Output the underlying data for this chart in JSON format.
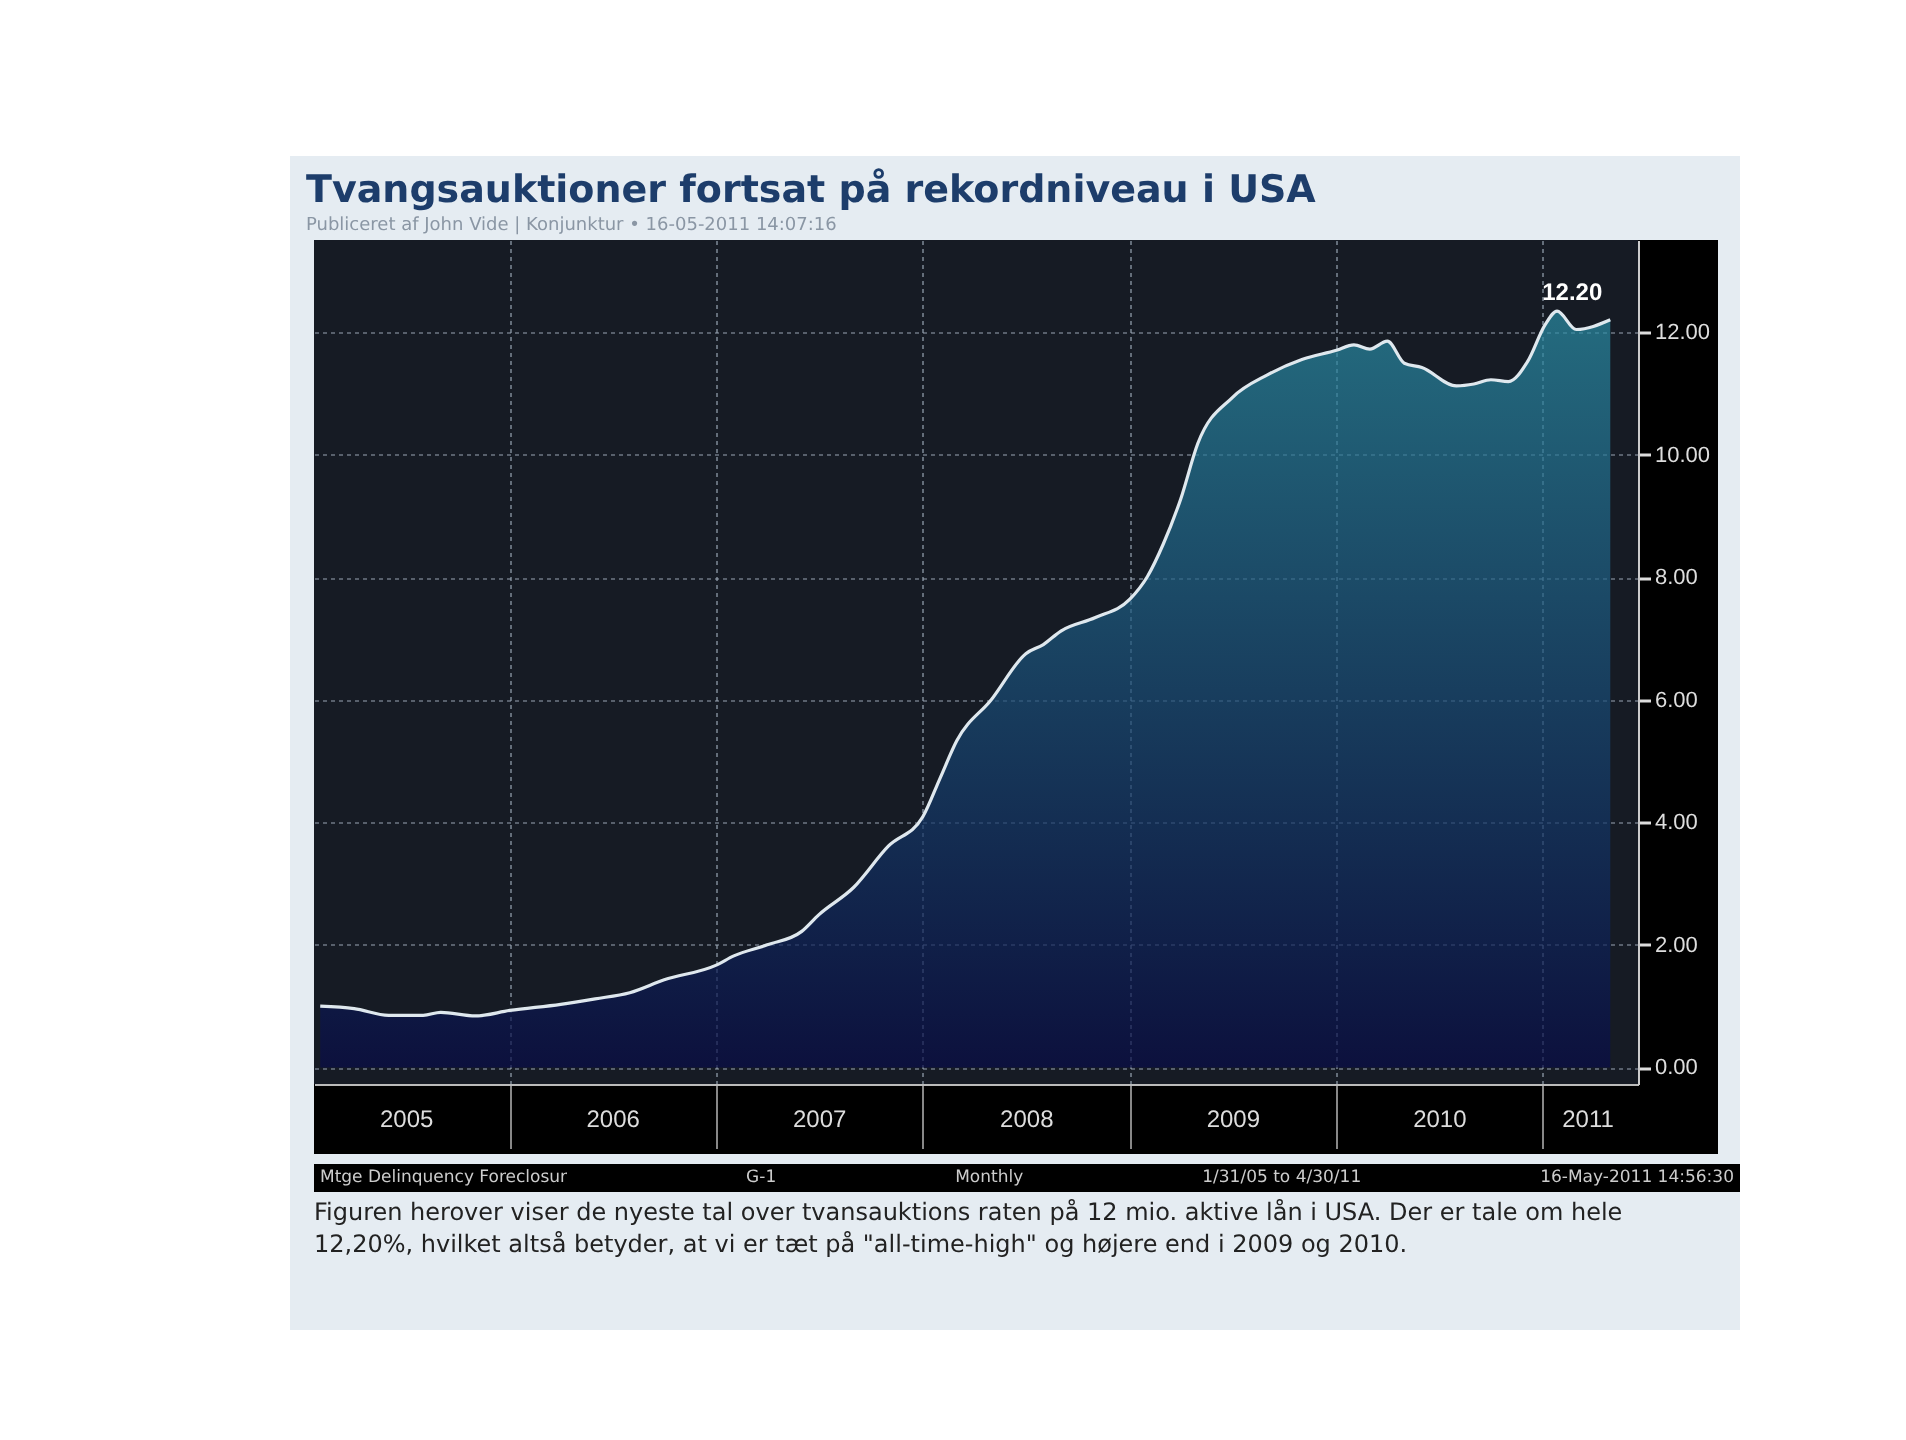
{
  "chart_data": {
    "type": "area",
    "title": "Tvangsauktioner fortsat på rekordniveau i USA",
    "subtitle": "Publiceret af John Vide | Konjunktur • 16-05-2011 14:07:16",
    "x": [
      "2005-01-31",
      "2005-04-01",
      "2005-06-01",
      "2005-08-01",
      "2005-09-01",
      "2005-11-01",
      "2006-01-01",
      "2006-04-01",
      "2006-06-01",
      "2006-08-01",
      "2006-10-01",
      "2007-01-01",
      "2007-02-01",
      "2007-04-01",
      "2007-06-01",
      "2007-07-01",
      "2007-09-01",
      "2007-11-01",
      "2008-01-01",
      "2008-02-01",
      "2008-03-01",
      "2008-05-01",
      "2008-07-01",
      "2008-08-01",
      "2008-09-01",
      "2008-11-01",
      "2009-01-01",
      "2009-02-01",
      "2009-03-01",
      "2009-04-01",
      "2009-05-01",
      "2009-07-01",
      "2009-09-01",
      "2009-11-01",
      "2010-01-01",
      "2010-02-01",
      "2010-03-01",
      "2010-04-01",
      "2010-05-01",
      "2010-06-01",
      "2010-08-01",
      "2010-09-01",
      "2010-10-01",
      "2010-11-01",
      "2010-12-05",
      "2011-01-05",
      "2011-01-26",
      "2011-03-01",
      "2011-04-30"
    ],
    "series": [
      {
        "color": "#2a8ea6",
        "values": [
          1.0,
          0.96,
          0.85,
          0.85,
          0.9,
          0.84,
          0.93,
          1.03,
          1.12,
          1.22,
          1.43,
          1.67,
          1.82,
          2.0,
          2.22,
          2.49,
          2.94,
          3.61,
          4.09,
          4.73,
          5.33,
          6.0,
          6.75,
          6.9,
          7.12,
          7.34,
          7.64,
          8.01,
          8.54,
          9.28,
          10.18,
          10.93,
          11.3,
          11.55,
          11.7,
          11.79,
          11.72,
          11.85,
          11.49,
          11.42,
          11.12,
          11.15,
          11.22,
          11.19,
          11.52,
          12.12,
          12.34,
          12.04,
          12.2
        ],
        "value_labels": [
          null,
          null,
          null,
          null,
          null,
          null,
          null,
          null,
          null,
          null,
          null,
          null,
          null,
          null,
          null,
          null,
          null,
          null,
          null,
          null,
          null,
          null,
          null,
          null,
          null,
          null,
          null,
          null,
          null,
          null,
          null,
          null,
          null,
          null,
          null,
          null,
          null,
          null,
          null,
          null,
          null,
          null,
          null,
          null,
          null,
          null,
          null,
          null,
          "12.20"
        ]
      }
    ],
    "xlim": [
      "2005-01-20",
      "2011-06-18"
    ],
    "xticks": [
      {
        "value": "2005-07-01",
        "label": "2005"
      },
      {
        "value": "2006-01-01",
        "label": null
      },
      {
        "value": "2006-07-01",
        "label": "2006"
      },
      {
        "value": "2007-01-01",
        "label": null
      },
      {
        "value": "2007-07-01",
        "label": "2007"
      },
      {
        "value": "2008-01-01",
        "label": null
      },
      {
        "value": "2008-07-01",
        "label": "2008"
      },
      {
        "value": "2009-01-01",
        "label": null
      },
      {
        "value": "2009-07-01",
        "label": "2009"
      },
      {
        "value": "2010-01-01",
        "label": null
      },
      {
        "value": "2010-07-01",
        "label": "2010"
      },
      {
        "value": "2011-01-01",
        "label": null
      },
      {
        "value": "2011-03-20",
        "label": "2011"
      }
    ],
    "ylim": [
      -0.27,
      13.5
    ],
    "yticks": [
      {
        "value": 0,
        "label": "0.00"
      },
      {
        "value": 2,
        "label": "2.00"
      },
      {
        "value": 4,
        "label": "4.00"
      },
      {
        "value": 6,
        "label": "6.00"
      },
      {
        "value": 8,
        "label": "8.00"
      },
      {
        "value": 10,
        "label": "10.00"
      },
      {
        "value": 12,
        "label": "12.00"
      }
    ],
    "grid": true,
    "annotations": [
      "Mtge Delinquency Foreclosur",
      "G-1",
      "Monthly",
      "1/31/05 to 4/30/11",
      "16-May-2011 14:56:30",
      "Figuren herover viser de nyeste tal over tvansauktions raten på 12 mio. aktive lån i USA. Der er tale om hele 12,20%, hvilket altså betyder, at vi er tæt på \"all-time-high\" og højere end i 2009 og 2010."
    ]
  }
}
